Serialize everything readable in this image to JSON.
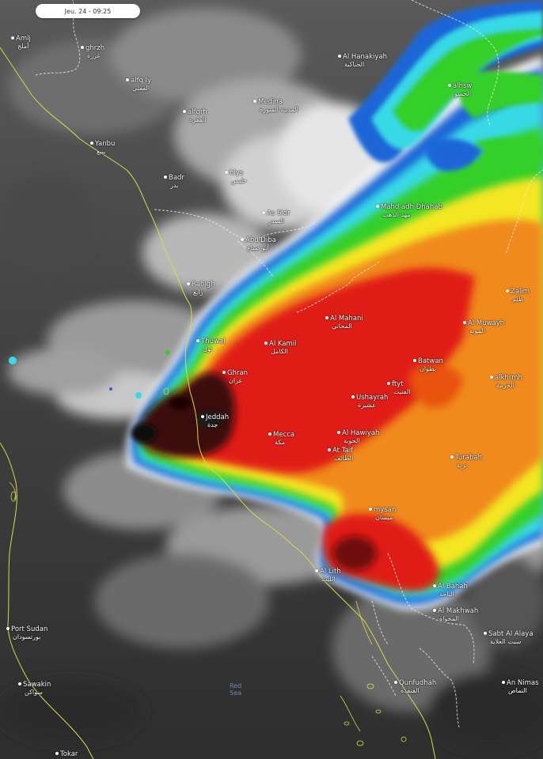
{
  "timestamp": "Jeu. 24 - 09:25",
  "sea_label": {
    "line1": "Red",
    "line2": "Sea"
  },
  "colors": {
    "coast": "#d6d84a",
    "border": "#e6e6e6",
    "land_dark": "#2c2c2c",
    "cloud_white": "#e9e9e9",
    "cloud_grey": "#9a9a9a",
    "storm_blue": "#1b5fd6",
    "storm_cyan": "#33d6e8",
    "storm_green": "#2fd02f",
    "storm_yellow": "#f3e820",
    "storm_orange": "#f07a1b",
    "storm_red": "#e01a12",
    "storm_dark": "#3a0606"
  },
  "places": [
    {
      "id": "amlj",
      "en": "Amlj",
      "ar": "أملج"
    },
    {
      "id": "ghrzh",
      "en": "ghrzh",
      "ar": "غرزة"
    },
    {
      "id": "alfqly",
      "en": "alfq ly",
      "ar": "الفقلي"
    },
    {
      "id": "alhanakiyah",
      "en": "Al Hanakiyah",
      "ar": "الحناكية"
    },
    {
      "id": "medina",
      "en": "Medina",
      "ar": "المدينة المنورة"
    },
    {
      "id": "alfqrh",
      "en": "alfqrh",
      "ar": "الفقرة"
    },
    {
      "id": "alhsw",
      "en": "alhsw",
      "ar": "الحسو"
    },
    {
      "id": "yanbu",
      "en": "Yanbu",
      "ar": "ينبع"
    },
    {
      "id": "badr",
      "en": "Badr",
      "ar": "بدر"
    },
    {
      "id": "hlys",
      "en": "hlys",
      "ar": "حليس"
    },
    {
      "id": "mahdadh",
      "en": "Mahd adh Dhahab",
      "ar": "مهد الذهب"
    },
    {
      "id": "assidr",
      "en": "As Sidr",
      "ar": "السدر"
    },
    {
      "id": "abudiba",
      "en": "Abu Diba",
      "ar": "أبو ضباع"
    },
    {
      "id": "rabigh",
      "en": "Rabigh",
      "ar": "رابغ"
    },
    {
      "id": "zalim",
      "en": "Zalim",
      "ar": "ظلم"
    },
    {
      "id": "almahani",
      "en": "Al Mahani",
      "ar": "المحاني"
    },
    {
      "id": "almuwayh",
      "en": "Al Muwayh",
      "ar": "المويه"
    },
    {
      "id": "thuwal",
      "en": "Thuwal",
      "ar": "ثول"
    },
    {
      "id": "alkamil",
      "en": "Al Kamil",
      "ar": "الكامل"
    },
    {
      "id": "batwan",
      "en": "Batwan",
      "ar": "بطوان"
    },
    {
      "id": "ghran",
      "en": "Ghran",
      "ar": "غران"
    },
    {
      "id": "alkhrmh",
      "en": "alkhrmh",
      "ar": "الخرمة"
    },
    {
      "id": "ftyt",
      "en": "ftyt",
      "ar": "الفتيت"
    },
    {
      "id": "ushayrah",
      "en": "Ushayrah",
      "ar": "عشيرة"
    },
    {
      "id": "jeddah",
      "en": "Jeddah",
      "ar": "جدة"
    },
    {
      "id": "alhawiyah",
      "en": "Al Hawiyah",
      "ar": "الحوية"
    },
    {
      "id": "mecca",
      "en": "Mecca",
      "ar": "مكة"
    },
    {
      "id": "attaif",
      "en": "At Taif",
      "ar": "الطائف"
    },
    {
      "id": "turabah",
      "en": "Turabah",
      "ar": "تربة"
    },
    {
      "id": "mysan",
      "en": "mysan",
      "ar": "ميسان"
    },
    {
      "id": "allith",
      "en": "Al Lith",
      "ar": "الليث"
    },
    {
      "id": "albahah",
      "en": "Al Bahah",
      "ar": "الباحة"
    },
    {
      "id": "almakhwah",
      "en": "Al Makhwah",
      "ar": "المخواة"
    },
    {
      "id": "portsudan",
      "en": "Port Sudan",
      "ar": "بورتسودان"
    },
    {
      "id": "sabtalalaya",
      "en": "Sabt Al Alaya",
      "ar": "سبت العلاية"
    },
    {
      "id": "sawakin",
      "en": "Sawakin",
      "ar": "سواكن"
    },
    {
      "id": "qunfudhah",
      "en": "Qunfudhah",
      "ar": "القنفذة"
    },
    {
      "id": "annimas",
      "en": "An Nimas",
      "ar": "النماص"
    },
    {
      "id": "tokar",
      "en": "Tokar",
      "ar": "طوكر"
    }
  ]
}
